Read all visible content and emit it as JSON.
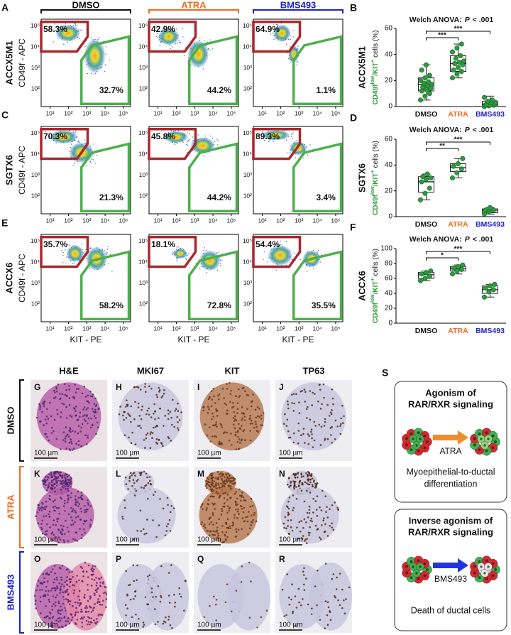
{
  "conditions": [
    {
      "name": "DMSO",
      "color": "#111111"
    },
    {
      "name": "ATRA",
      "color": "#f26b21"
    },
    {
      "name": "BMS493",
      "color": "#1c22c8"
    }
  ],
  "flow": {
    "y_label": "CD49f - APC",
    "x_label": "KIT - PE",
    "x_ticks": [
      "10¹",
      "10²",
      "10³",
      "10⁴",
      "10⁵"
    ],
    "y_ticks": [
      "10⁵",
      "10⁴",
      "10³",
      "10²"
    ],
    "panels": [
      {
        "letter": "A",
        "cell_line": "ACCX5M1",
        "red_gate": [
          "58.3%",
          "42.9%",
          "64.9%"
        ],
        "green_gate": [
          "32.7%",
          "44.2%",
          "1.1%"
        ]
      },
      {
        "letter": "C",
        "cell_line": "SGTX6",
        "red_gate": [
          "70.3%",
          "45.8%",
          "89.3%"
        ],
        "green_gate": [
          "21.3%",
          "44.2%",
          "3.4%"
        ]
      },
      {
        "letter": "E",
        "cell_line": "ACCX6",
        "red_gate": [
          "35.7%",
          "18.1%",
          "54.4%"
        ],
        "green_gate": [
          "58.2%",
          "72.8%",
          "35.5%"
        ]
      }
    ]
  },
  "box_y_label": {
    "marker": "CD49f",
    "sup1": "low",
    "mid": "/KIT",
    "sup2": "+",
    "tail": "cells (%)"
  },
  "box_plots": [
    {
      "letter": "B",
      "cell_line": "ACCX5M1",
      "title_lead": "Welch ANOVA:",
      "title_p": "P",
      "title_tail": "< .001",
      "ylim": [
        0,
        60
      ],
      "yticks": [
        0,
        20,
        40,
        60
      ],
      "significance": [
        "***",
        "***"
      ],
      "groups": [
        {
          "box": [
            5,
            12,
            17,
            22,
            32
          ],
          "points": [
            5,
            8,
            10,
            12,
            13,
            14,
            15,
            16,
            17,
            18,
            19,
            20,
            22,
            24,
            28,
            32
          ]
        },
        {
          "box": [
            22,
            27,
            33,
            39,
            48
          ],
          "points": [
            22,
            25,
            27,
            28,
            30,
            32,
            33,
            34,
            35,
            37,
            39,
            42,
            45,
            48
          ]
        },
        {
          "box": [
            0,
            1,
            2,
            4,
            8
          ],
          "points": [
            0,
            0.5,
            1,
            1,
            1.5,
            2,
            2,
            3,
            3,
            4,
            5,
            7
          ]
        }
      ]
    },
    {
      "letter": "D",
      "cell_line": "SGTX6",
      "title_lead": "Welch ANOVA:",
      "title_p": "P",
      "title_tail": "< .001",
      "ylim": [
        0,
        60
      ],
      "yticks": [
        0,
        20,
        40,
        60
      ],
      "significance": [
        "**",
        "***"
      ],
      "groups": [
        {
          "box": [
            13,
            19,
            27,
            31,
            33
          ],
          "points": [
            13,
            18,
            22,
            27,
            29,
            30,
            31,
            33
          ]
        },
        {
          "box": [
            30,
            35,
            38,
            41,
            45
          ],
          "points": [
            30,
            34,
            37,
            39,
            41,
            45
          ]
        },
        {
          "box": [
            2,
            3,
            5,
            6,
            7
          ],
          "points": [
            2,
            4,
            5,
            5,
            7
          ]
        }
      ]
    },
    {
      "letter": "F",
      "cell_line": "ACCX6",
      "title_lead": "Welch ANOVA:",
      "title_p": "P",
      "title_tail": "< .001",
      "ylim": [
        0,
        100
      ],
      "yticks": [
        0,
        20,
        40,
        60,
        80,
        100
      ],
      "significance": [
        "*",
        "***"
      ],
      "groups": [
        {
          "box": [
            57,
            60,
            65,
            68,
            70
          ],
          "points": [
            57,
            60,
            63,
            66,
            68,
            70
          ]
        },
        {
          "box": [
            66,
            70,
            73,
            76,
            78
          ],
          "points": [
            66,
            70,
            72,
            74,
            76,
            78
          ]
        },
        {
          "box": [
            35,
            40,
            45,
            50,
            52
          ],
          "points": [
            35,
            42,
            45,
            47,
            50,
            52
          ]
        }
      ]
    }
  ],
  "histology": {
    "columns": [
      "H&E",
      "MKI67",
      "KIT",
      "TP63"
    ],
    "letters": [
      [
        "G",
        "H",
        "I",
        "J"
      ],
      [
        "K",
        "L",
        "M",
        "N"
      ],
      [
        "O",
        "P",
        "Q",
        "R"
      ]
    ],
    "scale_bar": "100 µm"
  },
  "schematic": {
    "letter": "S",
    "top": {
      "title": [
        "Agonism of",
        "RAR/RXR signaling"
      ],
      "drug": "ATRA",
      "caption": [
        "Myoepithelial-to-ductal",
        "differentiation"
      ]
    },
    "bottom": {
      "title": [
        "Inverse agonism of",
        "RAR/RXR signaling"
      ],
      "drug": "BMS493",
      "caption": [
        "Death of ductal cells"
      ]
    }
  }
}
